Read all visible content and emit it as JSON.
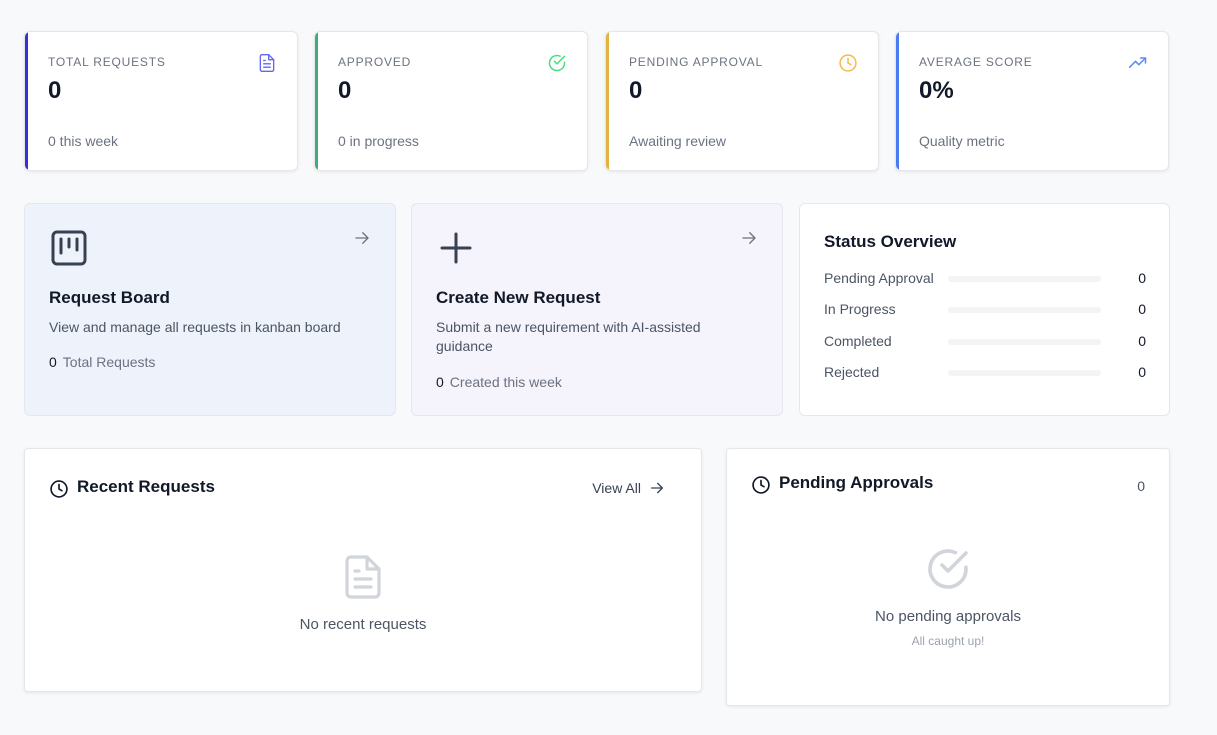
{
  "stats": [
    {
      "label": "TOTAL REQUESTS",
      "value": "0",
      "sub": "0 this week",
      "accent": "#3730d4",
      "icon": "document-icon",
      "icon_color": "#6366f1"
    },
    {
      "label": "APPROVED",
      "value": "0",
      "sub": "0 in progress",
      "accent": "#3fae7a",
      "icon": "check-circle-icon",
      "icon_color": "#4ade80"
    },
    {
      "label": "PENDING APPROVAL",
      "value": "0",
      "sub": "Awaiting review",
      "accent": "#e2b33d",
      "icon": "clock-icon",
      "icon_color": "#f5b94a"
    },
    {
      "label": "AVERAGE SCORE",
      "value": "0%",
      "sub": "Quality metric",
      "accent": "#4a7cf0",
      "icon": "trending-up-icon",
      "icon_color": "#5b8af5"
    }
  ],
  "actions": {
    "board": {
      "title": "Request Board",
      "desc": "View and manage all requests in kanban board",
      "count": "0",
      "count_label": "Total Requests",
      "bg": "#eef3fb"
    },
    "create": {
      "title": "Create New Request",
      "desc": "Submit a new requirement with AI-assisted guidance",
      "count": "0",
      "count_label": "Created this week",
      "bg": "#f5f3fc"
    }
  },
  "status_overview": {
    "title": "Status Overview",
    "rows": [
      {
        "label": "Pending Approval",
        "count": "0",
        "fraction": 0
      },
      {
        "label": "In Progress",
        "count": "0",
        "fraction": 0
      },
      {
        "label": "Completed",
        "count": "0",
        "fraction": 0
      },
      {
        "label": "Rejected",
        "count": "0",
        "fraction": 0
      }
    ]
  },
  "recent": {
    "title": "Recent Requests",
    "view_all": "View All",
    "empty": "No recent requests"
  },
  "pending": {
    "title": "Pending Approvals",
    "count": "0",
    "empty": "No pending approvals",
    "empty_sub": "All caught up!"
  }
}
